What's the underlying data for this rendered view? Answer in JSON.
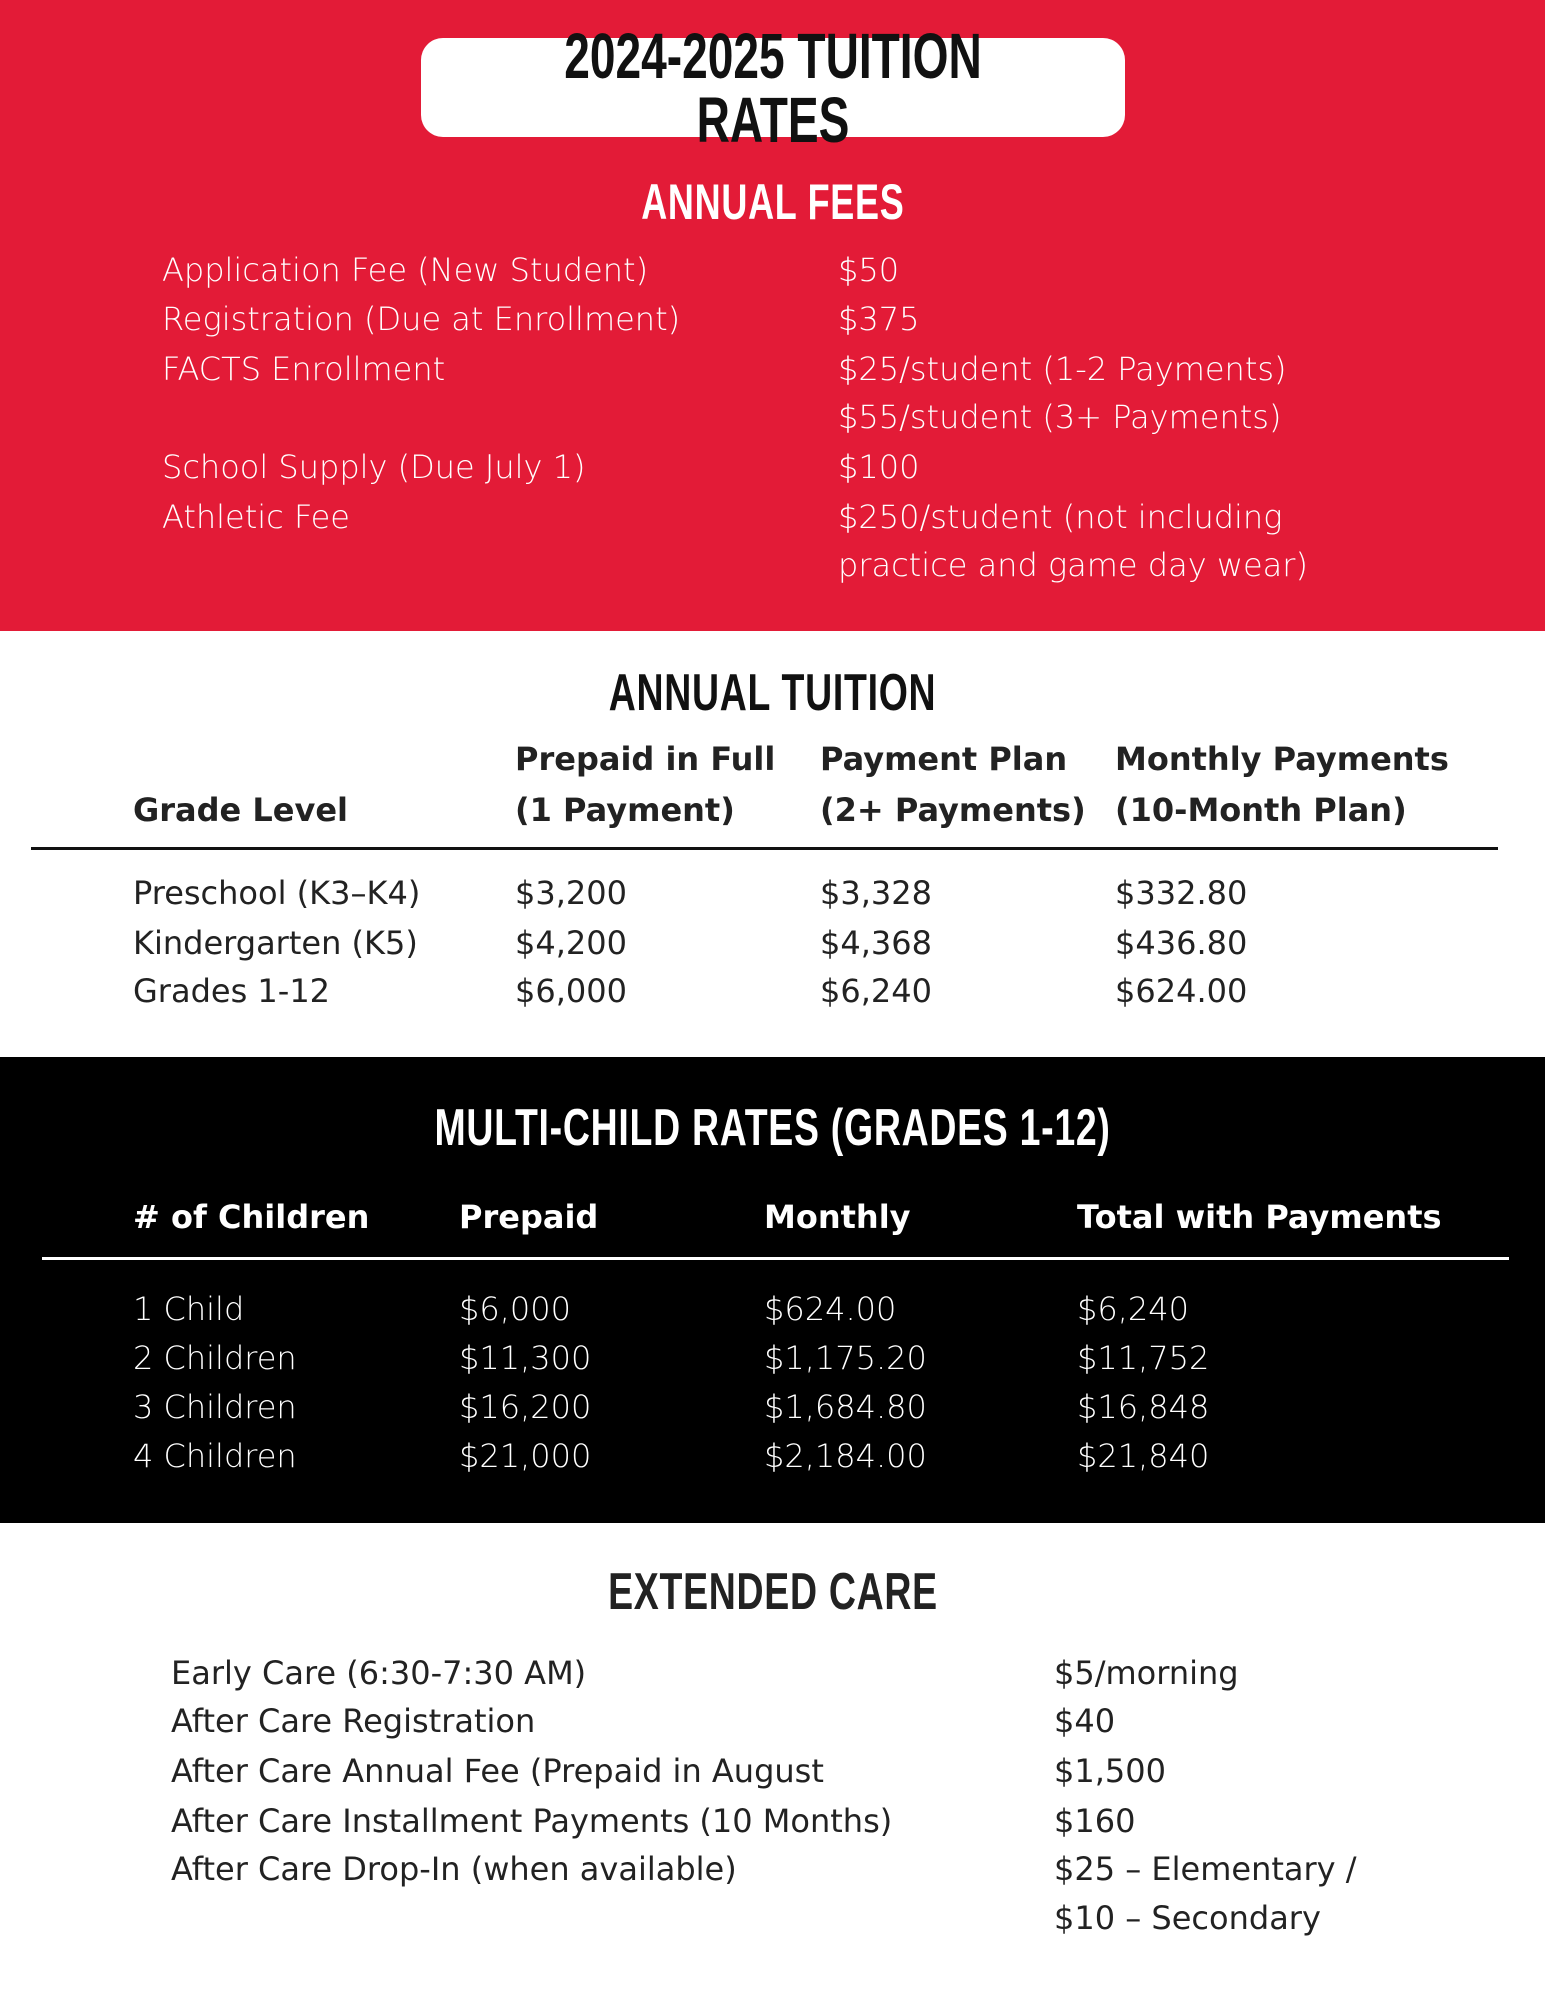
{
  "title": "2024-2025 TUITION RATES",
  "annual_fees": {
    "heading": "ANNUAL FEES",
    "rows": [
      {
        "label": "Application Fee (New Student)",
        "value": "$50"
      },
      {
        "label": "Registration (Due at Enrollment)",
        "value": "$375"
      },
      {
        "label": "FACTS Enrollment",
        "value": "$25/student (1-2 Payments)"
      },
      {
        "label": "",
        "value": "$55/student (3+ Payments)"
      },
      {
        "label": "School Supply (Due July 1)",
        "value": "$100"
      },
      {
        "label": "Athletic Fee",
        "value": "$250/student (not including"
      },
      {
        "label": "",
        "value": "practice and game day wear)"
      }
    ]
  },
  "annual_tuition": {
    "heading": "ANNUAL TUITION",
    "headers": [
      {
        "line1": "",
        "line2": "Grade Level"
      },
      {
        "line1": "Prepaid in Full",
        "line2": "(1 Payment)"
      },
      {
        "line1": "Payment Plan",
        "line2": "(2+ Payments)"
      },
      {
        "line1": "Monthly Payments",
        "line2": "(10-Month Plan)"
      }
    ],
    "rows": [
      [
        "Preschool (K3–K4)",
        "$3,200",
        "$3,328",
        "$332.80"
      ],
      [
        "Kindergarten (K5)",
        "$4,200",
        "$4,368",
        "$436.80"
      ],
      [
        "Grades 1-12",
        "$6,000",
        "$6,240",
        "$624.00"
      ]
    ]
  },
  "multi_child": {
    "heading": "MULTI-CHILD RATES (GRADES 1-12)",
    "headers": [
      "# of Children",
      "Prepaid",
      "Monthly",
      "Total with Payments"
    ],
    "rows": [
      [
        "1 Child",
        "$6,000",
        "$624.00",
        "$6,240"
      ],
      [
        "2 Children",
        "$11,300",
        "$1,175.20",
        "$11,752"
      ],
      [
        "3 Children",
        "$16,200",
        "$1,684.80",
        "$16,848"
      ],
      [
        "4 Children",
        "$21,000",
        "$2,184.00",
        "$21,840"
      ]
    ]
  },
  "extended_care": {
    "heading": "EXTENDED CARE",
    "rows": [
      {
        "label": "Early Care (6:30-7:30 AM)",
        "value": "$5/morning"
      },
      {
        "label": "After Care Registration",
        "value": "$40"
      },
      {
        "label": "After Care Annual Fee (Prepaid in August",
        "value": "$1,500"
      },
      {
        "label": "After Care Installment Payments (10 Months)",
        "value": "$160"
      },
      {
        "label": "After Care Drop-In (when available)",
        "value": "$25 – Elementary /"
      },
      {
        "label": "",
        "value": "$10 – Secondary"
      }
    ]
  },
  "colors": {
    "red": "#E31B37",
    "black": "#000000",
    "white": "#FFFFFF"
  }
}
